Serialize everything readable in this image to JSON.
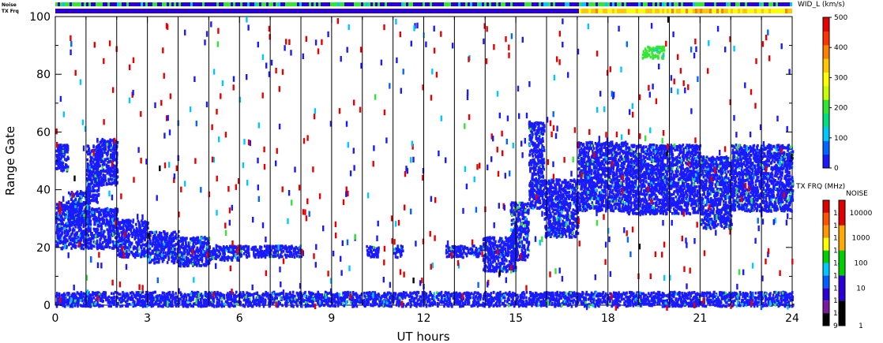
{
  "chart_data": {
    "type": "scatter",
    "xlabel": "UT hours",
    "ylabel": "Range Gate",
    "xlim": [
      0,
      24
    ],
    "ylim": [
      0,
      100
    ],
    "x_ticks": [
      "0",
      "3",
      "6",
      "9",
      "12",
      "15",
      "18",
      "21",
      "24"
    ],
    "x_tick_values": [
      0,
      3,
      6,
      9,
      12,
      15,
      18,
      21,
      24
    ],
    "y_ticks": [
      "0",
      "20",
      "40",
      "60",
      "80",
      "100"
    ],
    "y_tick_values": [
      0,
      20,
      40,
      60,
      80,
      100
    ],
    "scan_lines_x": [
      1,
      2,
      3,
      4,
      5,
      6,
      7,
      8,
      9,
      10,
      11,
      12,
      13,
      14,
      15,
      16,
      17,
      18,
      19,
      20,
      21,
      22,
      23
    ],
    "top_strips": {
      "noise_label": "Noise",
      "txfrq_label": "TX Frq"
    },
    "colorbar_width": {
      "title": "WID_L (km/s)",
      "ticks": [
        "0",
        "100",
        "200",
        "300",
        "400",
        "500"
      ],
      "tick_values": [
        0,
        100,
        200,
        300,
        400,
        500
      ],
      "colors": [
        "#1a1aff",
        "#0066ff",
        "#00c8ff",
        "#00e080",
        "#33e633",
        "#c8ff00",
        "#ffff00",
        "#ffc800",
        "#ff8000",
        "#ff3300",
        "#e60000"
      ]
    },
    "colorbar_txfrq": {
      "title": "TX FRQ (MHz)",
      "ticks": [
        "9",
        "10",
        "11",
        "12",
        "13",
        "14",
        "15",
        "16",
        "17",
        "18"
      ],
      "colors": [
        "#000000",
        "#7a1a9a",
        "#2a00d8",
        "#0060ff",
        "#00c8ff",
        "#00d000",
        "#ffff00",
        "#ff9900",
        "#ff5500",
        "#e00000"
      ]
    },
    "colorbar_noise": {
      "title": "NOISE",
      "ticks": [
        "1",
        "10",
        "100",
        "1000",
        "10000"
      ],
      "colors": [
        "#000000",
        "#2a00d8",
        "#00d000",
        "#ffaa00",
        "#e00000"
      ]
    },
    "regions": [
      {
        "x0": 0.0,
        "x1": 1.0,
        "y0": 20,
        "y1": 36,
        "color": "#1a1aff"
      },
      {
        "x0": 0.4,
        "x1": 1.1,
        "y0": 28,
        "y1": 40,
        "color": "#1a1aff"
      },
      {
        "x0": 1.0,
        "x1": 1.4,
        "y0": 36,
        "y1": 56,
        "color": "#1a1aff"
      },
      {
        "x0": 1.3,
        "x1": 2.0,
        "y0": 42,
        "y1": 58,
        "color": "#1a1aff"
      },
      {
        "x0": 0.0,
        "x1": 0.4,
        "y0": 47,
        "y1": 56,
        "color": "#1a1aff"
      },
      {
        "x0": 1.0,
        "x1": 2.0,
        "y0": 20,
        "y1": 34,
        "color": "#1a1aff"
      },
      {
        "x0": 2.0,
        "x1": 3.0,
        "y0": 17,
        "y1": 30,
        "color": "#1a1aff"
      },
      {
        "x0": 3.0,
        "x1": 4.0,
        "y0": 15,
        "y1": 26,
        "color": "#1a1aff"
      },
      {
        "x0": 4.0,
        "x1": 5.0,
        "y0": 14,
        "y1": 24,
        "color": "#1a1aff"
      },
      {
        "x0": 5.0,
        "x1": 6.0,
        "y0": 16,
        "y1": 21,
        "color": "#1a1aff"
      },
      {
        "x0": 6.0,
        "x1": 7.0,
        "y0": 17,
        "y1": 21,
        "color": "#1a1aff"
      },
      {
        "x0": 7.0,
        "x1": 8.0,
        "y0": 17,
        "y1": 21,
        "color": "#1a1aff"
      },
      {
        "x0": 10.1,
        "x1": 10.5,
        "y0": 17,
        "y1": 21,
        "color": "#1a1aff"
      },
      {
        "x0": 11.0,
        "x1": 11.3,
        "y0": 17,
        "y1": 21,
        "color": "#1a1aff"
      },
      {
        "x0": 12.7,
        "x1": 13.9,
        "y0": 17,
        "y1": 21,
        "color": "#1a1aff"
      },
      {
        "x0": 13.9,
        "x1": 15.0,
        "y0": 12,
        "y1": 24,
        "color": "#1a1aff"
      },
      {
        "x0": 14.8,
        "x1": 15.4,
        "y0": 16,
        "y1": 36,
        "color": "#1a1aff"
      },
      {
        "x0": 15.4,
        "x1": 15.9,
        "y0": 34,
        "y1": 64,
        "color": "#1a1aff"
      },
      {
        "x0": 15.9,
        "x1": 17.0,
        "y0": 24,
        "y1": 44,
        "color": "#1a1aff"
      },
      {
        "x0": 17.0,
        "x1": 18.6,
        "y0": 33,
        "y1": 57,
        "color": "#1a1aff"
      },
      {
        "x0": 18.6,
        "x1": 21.0,
        "y0": 32,
        "y1": 56,
        "color": "#1a1aff"
      },
      {
        "x0": 21.0,
        "x1": 22.0,
        "y0": 27,
        "y1": 52,
        "color": "#1a1aff"
      },
      {
        "x0": 22.0,
        "x1": 24.0,
        "y0": 33,
        "y1": 56,
        "color": "#1a1aff"
      },
      {
        "x0": 0.0,
        "x1": 24.0,
        "y0": 0,
        "y1": 5,
        "color": "#1a1aff"
      },
      {
        "x0": 19.1,
        "x1": 19.8,
        "y0": 86,
        "y1": 90,
        "color": "#33e633"
      }
    ],
    "scatter_colors": [
      "#e60000",
      "#1a1aff",
      "#00c8ff",
      "#33e633",
      "#0066ff",
      "#000000"
    ]
  }
}
